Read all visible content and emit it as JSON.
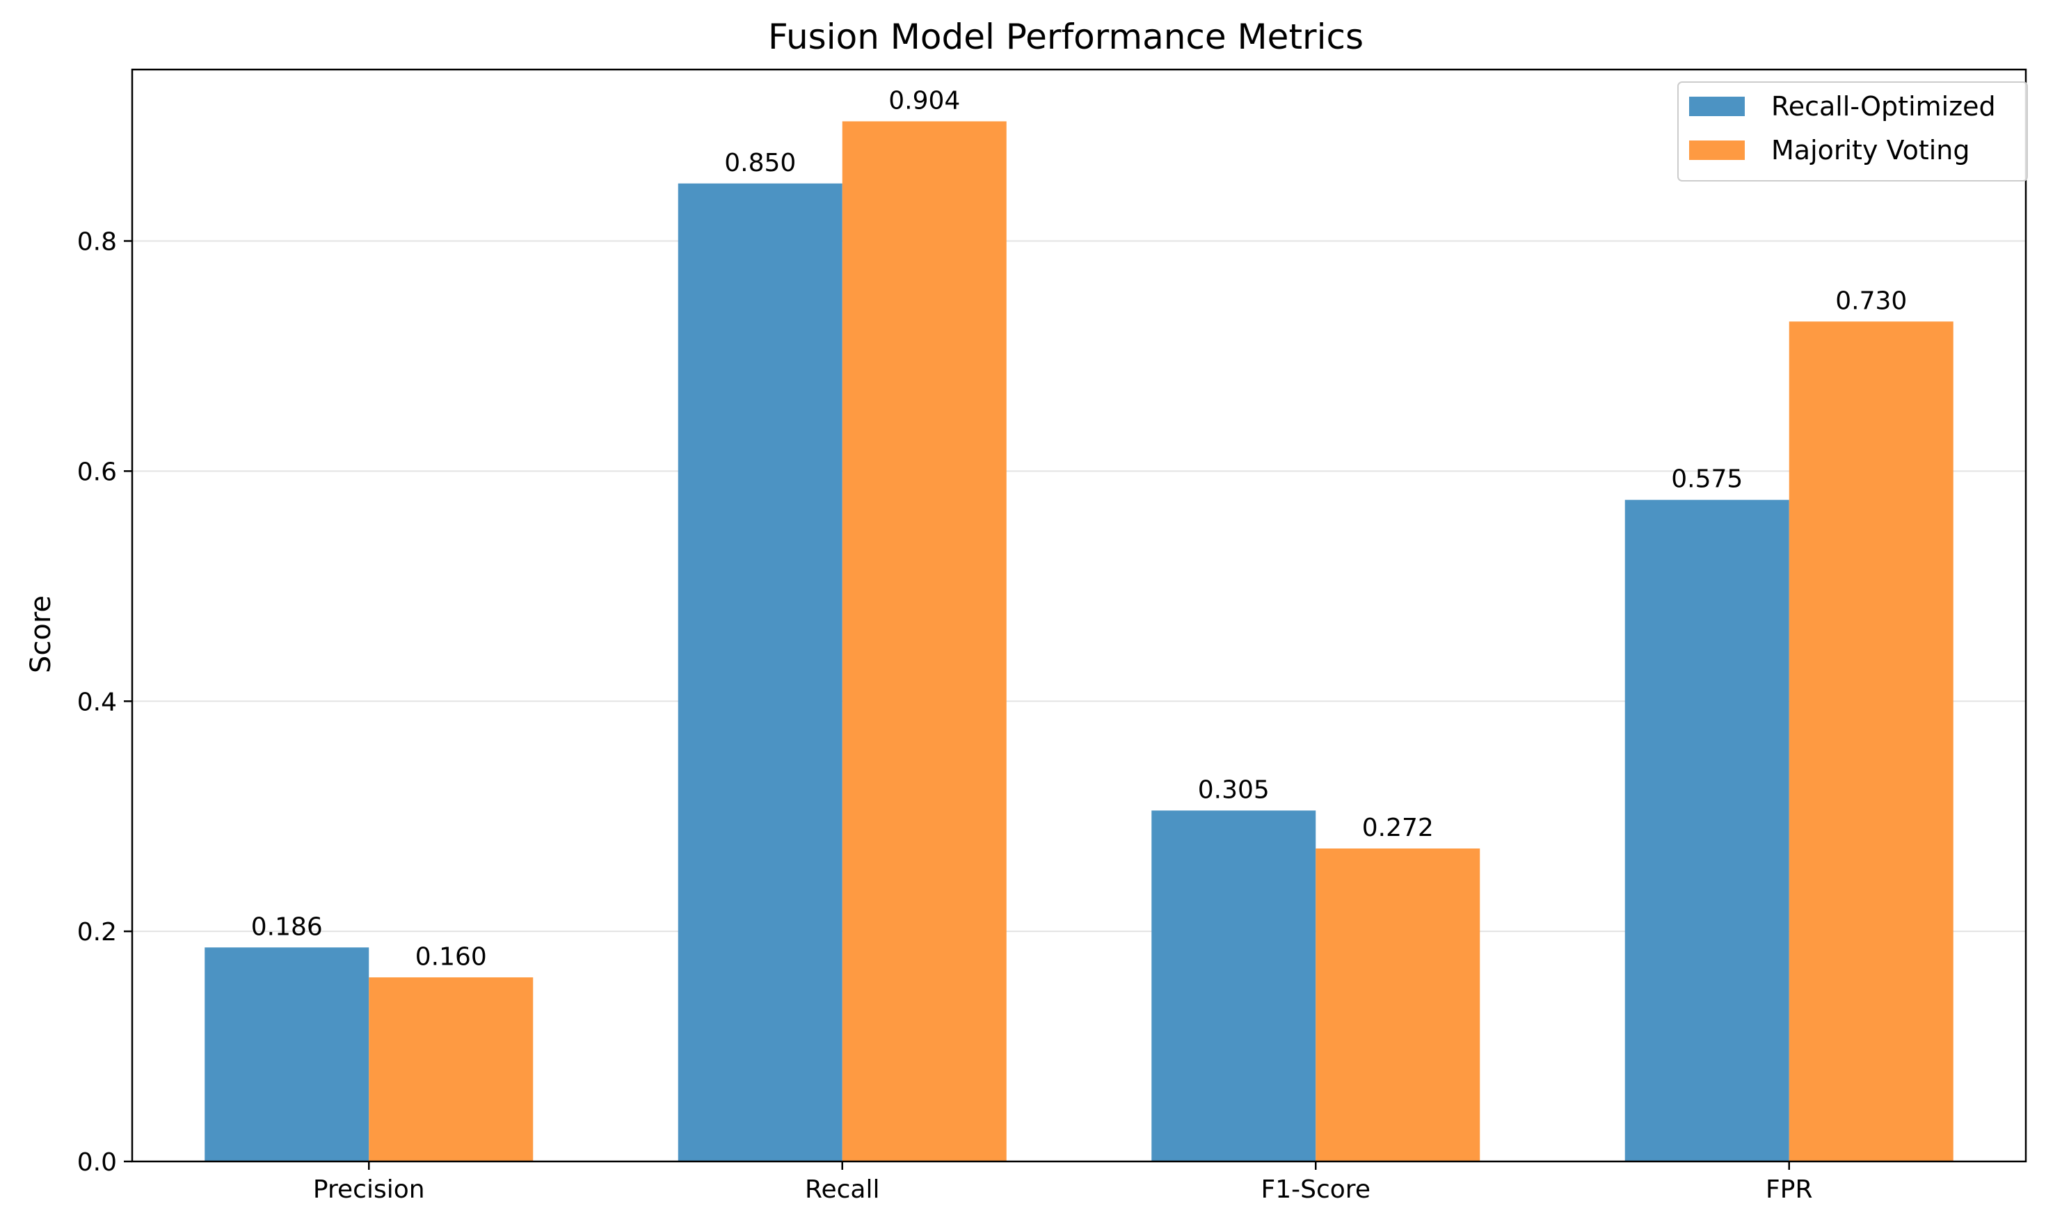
{
  "chart_data": {
    "type": "bar",
    "title": "Fusion Model Performance Metrics",
    "xlabel": "",
    "ylabel": "Score",
    "categories": [
      "Precision",
      "Recall",
      "F1-Score",
      "FPR"
    ],
    "series": [
      {
        "name": "Recall-Optimized",
        "color": "#4c93c3",
        "values": [
          0.186,
          0.85,
          0.305,
          0.575
        ],
        "labels": [
          "0.186",
          "0.850",
          "0.305",
          "0.575"
        ]
      },
      {
        "name": "Majority Voting",
        "color": "#fe9a42",
        "values": [
          0.16,
          0.904,
          0.272,
          0.73
        ],
        "labels": [
          "0.160",
          "0.904",
          "0.272",
          "0.730"
        ]
      }
    ],
    "ylim": [
      0,
      0.949
    ],
    "yticks": [
      0.0,
      0.2,
      0.4,
      0.6,
      0.8
    ],
    "ytick_labels": [
      "0.0",
      "0.2",
      "0.4",
      "0.6",
      "0.8"
    ],
    "grid": "y",
    "legend": "top-right"
  }
}
